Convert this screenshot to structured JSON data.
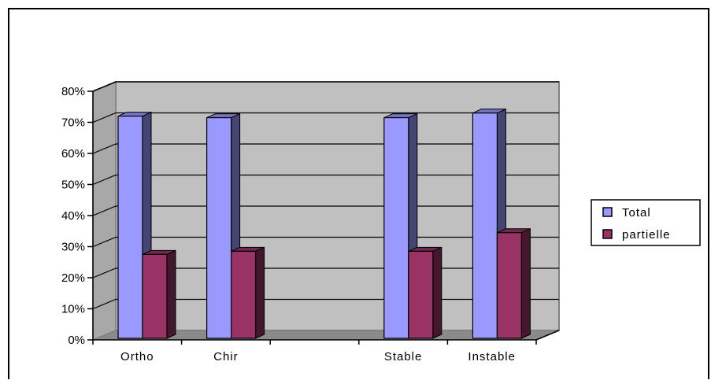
{
  "chart_data": {
    "type": "bar",
    "categories": [
      "Ortho",
      "Chir",
      "",
      "Stable",
      "Instable"
    ],
    "category_labels": [
      "Ortho",
      "Chir",
      "",
      "Stable",
      "Instable"
    ],
    "series": [
      {
        "name": "Total",
        "values": [
          72,
          71.5,
          null,
          71.5,
          73
        ],
        "color": "#9999ff"
      },
      {
        "name": "partielle",
        "values": [
          27.5,
          28.5,
          null,
          28.5,
          34.5
        ],
        "color": "#993366"
      }
    ],
    "ylim": [
      0,
      80
    ],
    "yticks": [
      "0%",
      "10%",
      "20%",
      "30%",
      "40%",
      "50%",
      "60%",
      "70%",
      "80%"
    ],
    "grid": true,
    "legend_position": "right",
    "plot_background": "#c0c0c0",
    "title": "",
    "xlabel": "",
    "ylabel": ""
  }
}
